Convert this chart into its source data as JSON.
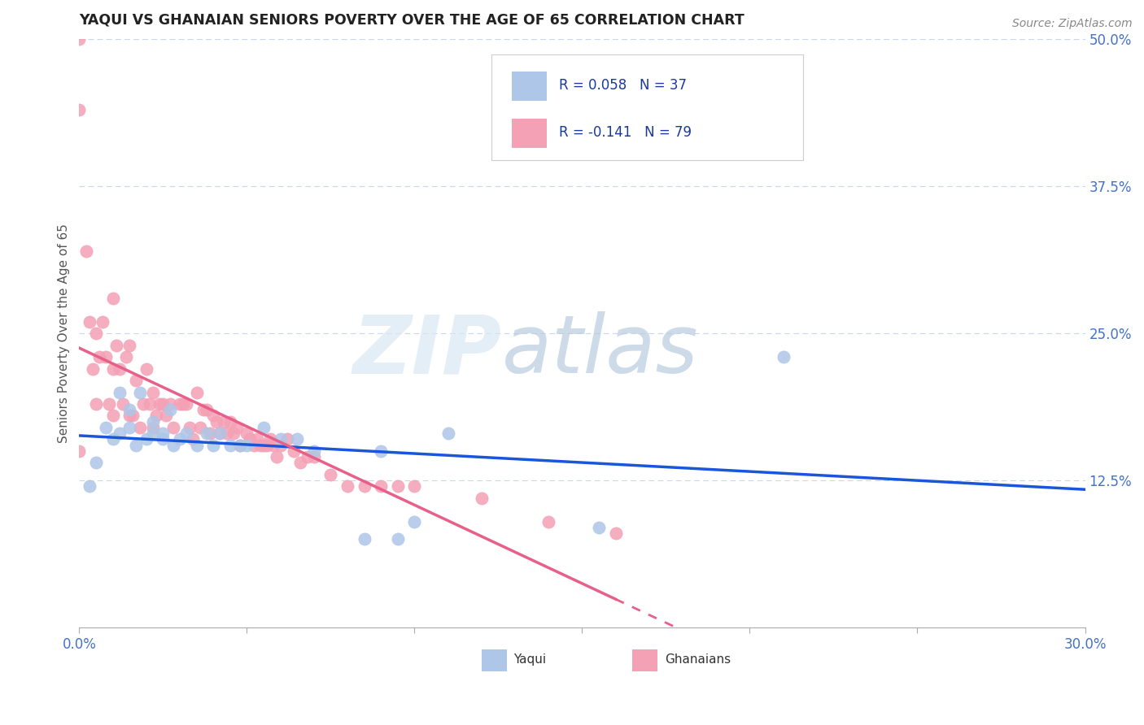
{
  "title": "YAQUI VS GHANAIAN SENIORS POVERTY OVER THE AGE OF 65 CORRELATION CHART",
  "source": "Source: ZipAtlas.com",
  "ylabel": "Seniors Poverty Over the Age of 65",
  "xlim": [
    0.0,
    0.3
  ],
  "ylim": [
    0.0,
    0.5
  ],
  "xticks": [
    0.0,
    0.05,
    0.1,
    0.15,
    0.2,
    0.25,
    0.3
  ],
  "yticks": [
    0.0,
    0.125,
    0.25,
    0.375,
    0.5
  ],
  "xtick_labels": [
    "0.0%",
    "",
    "",
    "",
    "",
    "",
    "30.0%"
  ],
  "ytick_labels": [
    "",
    "12.5%",
    "25.0%",
    "37.5%",
    "50.0%"
  ],
  "watermark_left": "ZIP",
  "watermark_right": "atlas",
  "legend_r1": "R = 0.058",
  "legend_n1": "N = 37",
  "legend_r2": "R = -0.141",
  "legend_n2": "N = 79",
  "yaqui_color": "#aec6e8",
  "ghanaian_color": "#f4a0b5",
  "yaqui_line_color": "#1a56db",
  "ghanaian_line_color": "#e8608a",
  "axis_color": "#4472c4",
  "grid_color": "#c8d8e8",
  "background_color": "#ffffff",
  "yaqui_x": [
    0.003,
    0.005,
    0.008,
    0.01,
    0.012,
    0.012,
    0.015,
    0.015,
    0.017,
    0.018,
    0.02,
    0.022,
    0.022,
    0.025,
    0.025,
    0.027,
    0.028,
    0.03,
    0.032,
    0.035,
    0.038,
    0.04,
    0.042,
    0.045,
    0.048,
    0.05,
    0.055,
    0.06,
    0.065,
    0.07,
    0.085,
    0.09,
    0.095,
    0.1,
    0.11,
    0.155,
    0.21
  ],
  "yaqui_y": [
    0.12,
    0.14,
    0.17,
    0.16,
    0.2,
    0.165,
    0.185,
    0.17,
    0.155,
    0.2,
    0.16,
    0.175,
    0.165,
    0.165,
    0.16,
    0.185,
    0.155,
    0.16,
    0.165,
    0.155,
    0.165,
    0.155,
    0.165,
    0.155,
    0.155,
    0.155,
    0.17,
    0.16,
    0.16,
    0.15,
    0.075,
    0.15,
    0.075,
    0.09,
    0.165,
    0.085,
    0.23
  ],
  "ghanaian_x": [
    0.0,
    0.0,
    0.0,
    0.002,
    0.003,
    0.004,
    0.005,
    0.005,
    0.006,
    0.007,
    0.008,
    0.009,
    0.01,
    0.01,
    0.01,
    0.011,
    0.012,
    0.013,
    0.014,
    0.015,
    0.015,
    0.016,
    0.017,
    0.018,
    0.019,
    0.02,
    0.021,
    0.022,
    0.022,
    0.023,
    0.024,
    0.025,
    0.026,
    0.027,
    0.028,
    0.03,
    0.031,
    0.032,
    0.033,
    0.034,
    0.035,
    0.036,
    0.037,
    0.038,
    0.039,
    0.04,
    0.041,
    0.042,
    0.043,
    0.044,
    0.045,
    0.046,
    0.047,
    0.048,
    0.05,
    0.051,
    0.052,
    0.053,
    0.054,
    0.055,
    0.056,
    0.057,
    0.058,
    0.059,
    0.06,
    0.062,
    0.064,
    0.066,
    0.068,
    0.07,
    0.075,
    0.08,
    0.085,
    0.09,
    0.095,
    0.1,
    0.12,
    0.14,
    0.16
  ],
  "ghanaian_y": [
    0.5,
    0.44,
    0.15,
    0.32,
    0.26,
    0.22,
    0.25,
    0.19,
    0.23,
    0.26,
    0.23,
    0.19,
    0.28,
    0.22,
    0.18,
    0.24,
    0.22,
    0.19,
    0.23,
    0.24,
    0.18,
    0.18,
    0.21,
    0.17,
    0.19,
    0.22,
    0.19,
    0.2,
    0.17,
    0.18,
    0.19,
    0.19,
    0.18,
    0.19,
    0.17,
    0.19,
    0.19,
    0.19,
    0.17,
    0.16,
    0.2,
    0.17,
    0.185,
    0.185,
    0.165,
    0.18,
    0.175,
    0.165,
    0.175,
    0.165,
    0.175,
    0.165,
    0.17,
    0.155,
    0.165,
    0.16,
    0.155,
    0.16,
    0.155,
    0.155,
    0.155,
    0.16,
    0.155,
    0.145,
    0.155,
    0.16,
    0.15,
    0.14,
    0.145,
    0.145,
    0.13,
    0.12,
    0.12,
    0.12,
    0.12,
    0.12,
    0.11,
    0.09,
    0.08
  ]
}
